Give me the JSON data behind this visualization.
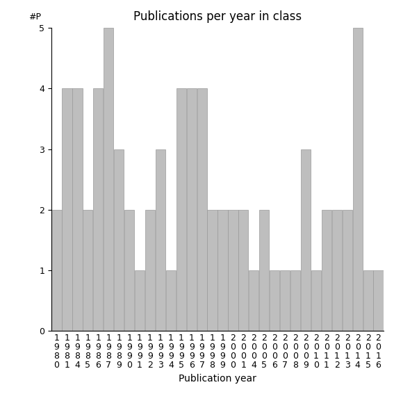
{
  "years": [
    "1980",
    "1981",
    "1984",
    "1985",
    "1986",
    "1987",
    "1989",
    "1990",
    "1991",
    "1992",
    "1993",
    "1994",
    "1995",
    "1996",
    "1997",
    "1998",
    "1999",
    "2000",
    "2001",
    "2004",
    "2005",
    "2006",
    "2007",
    "2008",
    "2009",
    "2010",
    "2011",
    "2012",
    "2013",
    "2014",
    "2015",
    "2016"
  ],
  "values": [
    2,
    4,
    4,
    2,
    4,
    5,
    3,
    2,
    1,
    2,
    3,
    1,
    4,
    4,
    4,
    2,
    2,
    2,
    2,
    1,
    2,
    1,
    1,
    1,
    3,
    1,
    2,
    2,
    2,
    5,
    1,
    1
  ],
  "bar_color": "#bebebe",
  "bar_edgecolor": "#999999",
  "title": "Publications per year in class",
  "xlabel": "Publication year",
  "ylabel_top": "#P",
  "ylim": [
    0,
    5
  ],
  "title_fontsize": 12,
  "label_fontsize": 10,
  "tick_fontsize": 9,
  "background_color": "#ffffff"
}
